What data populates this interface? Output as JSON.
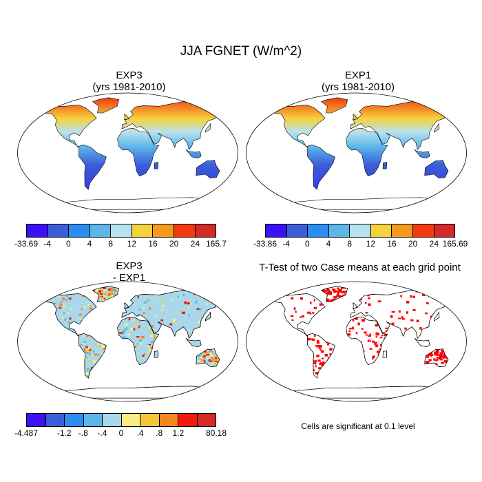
{
  "title": "JJA FGNET (W/m^2)",
  "panels": [
    {
      "line1": "EXP3",
      "line2": "(yrs 1981-2010)"
    },
    {
      "line1": "EXP1",
      "line2": "(yrs 1981-2010)"
    },
    {
      "line1": "EXP3",
      "line2": "- EXP1"
    },
    {
      "line1": "T-Test of two Case means at each grid point",
      "line2": ""
    }
  ],
  "colorbars": [
    {
      "labels": [
        "-33.69",
        "-4",
        "0",
        "4",
        "8",
        "12",
        "16",
        "20",
        "24",
        "165.7"
      ],
      "colors": [
        "#3a12f5",
        "#3a5ed8",
        "#2a8ef0",
        "#5cb6ea",
        "#b8e2f0",
        "#f6d13c",
        "#f59a1c",
        "#f23a0e",
        "#d42a2a"
      ]
    },
    {
      "labels": [
        "-33.86",
        "-4",
        "0",
        "4",
        "8",
        "12",
        "16",
        "20",
        "24",
        "165.69"
      ],
      "colors": [
        "#3a12f5",
        "#3a5ed8",
        "#2a8ef0",
        "#5cb6ea",
        "#b8e2f0",
        "#f6d13c",
        "#f59a1c",
        "#f23a0e",
        "#d42a2a"
      ]
    },
    {
      "labels": [
        "-4.487",
        "",
        "-1.2",
        "-.8",
        "-.4",
        "0",
        ".4",
        ".8",
        "1.2",
        "",
        "80.18"
      ],
      "colors": [
        "#3a12f5",
        "#3a5ed8",
        "#2a8ef0",
        "#5cb6ea",
        "#a8d8ea",
        "#f7ef86",
        "#f6c63a",
        "#f5861c",
        "#f21a0e",
        "#d42a2a"
      ]
    }
  ],
  "significance_note": "Cells are significant at 0.1 level",
  "colors": {
    "ocean": "#ffffff",
    "coast": "#000000",
    "land_cool": "#3a5ed8",
    "land_mid": "#b8e2f0",
    "land_warm": "#f23a0e",
    "diff_land": "#a8d8ea",
    "significant": "#ff0000"
  }
}
